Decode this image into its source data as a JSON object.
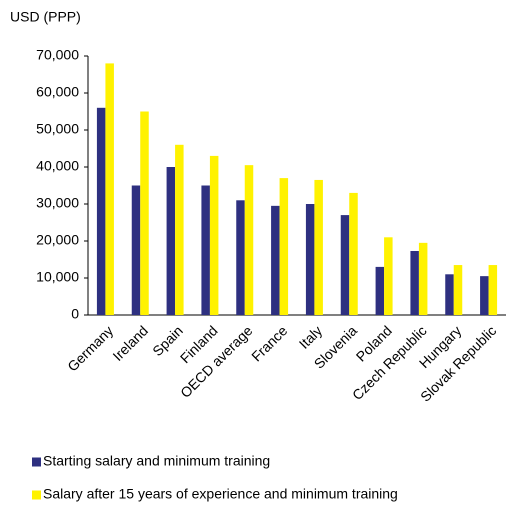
{
  "chart_data": {
    "type": "bar",
    "y_axis_label": "USD (PPP)",
    "categories": [
      "Germany",
      "Ireland",
      "Spain",
      "Finland",
      "OECD average",
      "France",
      "Italy",
      "Slovenia",
      "Poland",
      "Czech Republic",
      "Hungary",
      "Slovak Republic"
    ],
    "series": [
      {
        "name": "Starting salary and minimum training",
        "color": "#2e3080",
        "values": [
          56000,
          35000,
          40000,
          35000,
          31000,
          29500,
          30000,
          27000,
          13000,
          17300,
          11000,
          10500
        ]
      },
      {
        "name": "Salary after 15 years of experience and minimum training",
        "color": "#fff200",
        "values": [
          68000,
          55000,
          46000,
          43000,
          40500,
          37000,
          36500,
          33000,
          21000,
          19500,
          13500,
          13500
        ]
      }
    ],
    "ylim": [
      0,
      70000
    ],
    "yticks": [
      0,
      {
        "value": 10000,
        "label": "10,000"
      },
      {
        "value": 20000,
        "label": "20,000"
      },
      {
        "value": 30000,
        "label": "30,000"
      },
      {
        "value": 40000,
        "label": "40,000"
      },
      {
        "value": 50000,
        "label": "50,000"
      },
      {
        "value": 60000,
        "label": "60,000"
      },
      {
        "value": 70000,
        "label": "70,000"
      }
    ],
    "grid": false
  }
}
